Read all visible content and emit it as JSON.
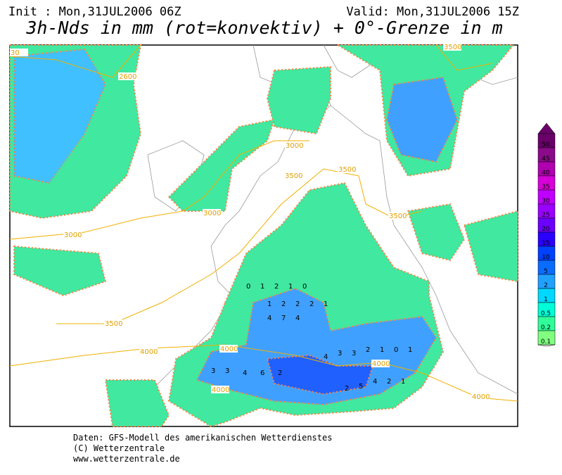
{
  "header": {
    "init": "Init : Mon,31JUL2006 06Z",
    "valid": "Valid: Mon,31JUL2006 15Z",
    "title": "3h-Nds in mm (rot=konvektiv) + 0°-Grenze in m"
  },
  "legend": {
    "levels": [
      50,
      45,
      40,
      35,
      30,
      25,
      20,
      15,
      10,
      5,
      2,
      1,
      0.5,
      0.2,
      0.1
    ],
    "colors": [
      "#6a006a",
      "#8a0a8a",
      "#b000b0",
      "#d800d8",
      "#c000ff",
      "#9a00ff",
      "#6c00ff",
      "#2a00ff",
      "#0040ff",
      "#0a6cff",
      "#20a0ff",
      "#00d8ff",
      "#00ffd8",
      "#30ff9a",
      "#80ff80"
    ]
  },
  "contours": [
    "30",
    "2600",
    "3000",
    "3000",
    "3000",
    "3500",
    "3500",
    "3500",
    "3500",
    "3500",
    "4000",
    "4000",
    "4000",
    "4000",
    "4000"
  ],
  "map_digits": [
    "0",
    "1",
    "2",
    "1",
    "0",
    "1",
    "2",
    "2",
    "4",
    "7",
    "4",
    "2",
    "1",
    "3",
    "3",
    "4",
    "6",
    "2",
    "2",
    "5",
    "4",
    "2",
    "1",
    "4",
    "3",
    "3",
    "2",
    "1",
    "0",
    "1"
  ],
  "footer": [
    "Daten: GFS-Modell des amerikanischen Wetterdienstes",
    "(C) Wetterzentrale",
    "www.wetterzentrale.de"
  ]
}
